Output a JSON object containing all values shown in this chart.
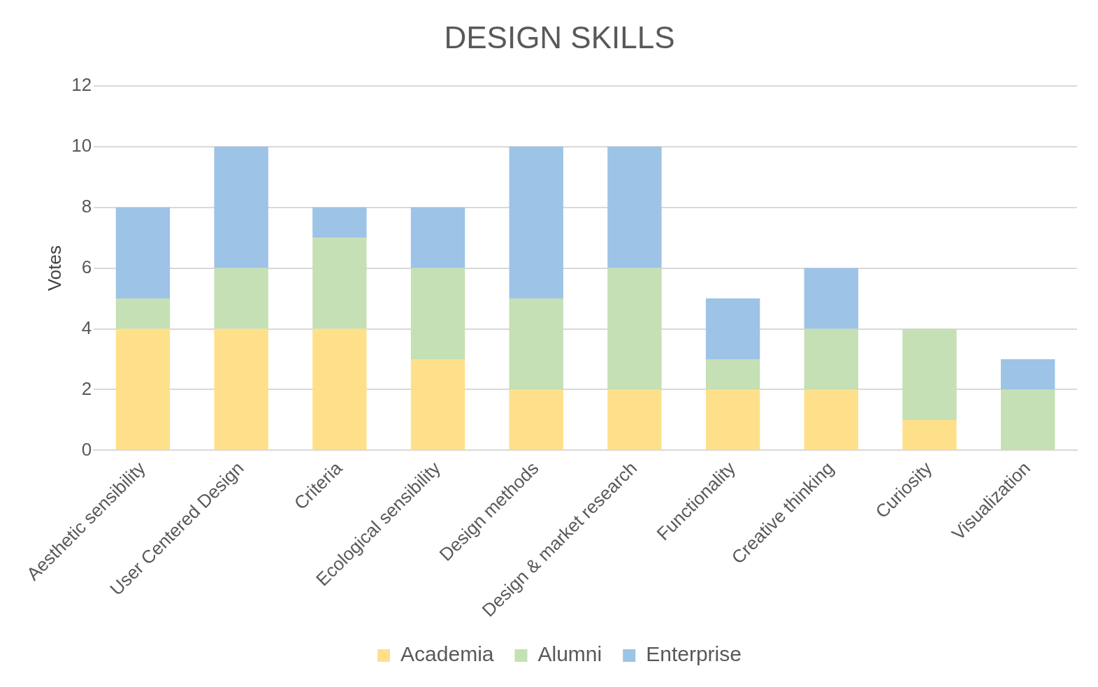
{
  "chart_data": {
    "type": "bar",
    "title": "DESIGN SKILLS",
    "ylabel": "Votes",
    "categories": [
      "Aesthetic sensibility",
      "User Centered Design",
      "Criteria",
      "Ecological sensibility",
      "Design methods",
      "Design & market research",
      "Functionality",
      "Creative thinking",
      "Curiosity",
      "Visualization"
    ],
    "series": [
      {
        "name": "Academia",
        "color": "#ffe08a",
        "values": [
          4,
          4,
          4,
          3,
          2,
          2,
          2,
          2,
          1,
          0
        ]
      },
      {
        "name": "Alumni",
        "color": "#c5e0b4",
        "values": [
          1,
          2,
          3,
          3,
          3,
          4,
          1,
          2,
          3,
          2
        ]
      },
      {
        "name": "Enterprise",
        "color": "#9dc3e6",
        "values": [
          3,
          4,
          1,
          2,
          5,
          4,
          2,
          2,
          0,
          1
        ]
      }
    ],
    "stacked": true,
    "ylim": [
      0,
      12
    ],
    "yticks": [
      0,
      2,
      4,
      6,
      8,
      10,
      12
    ],
    "grid": "y",
    "legend": "bottom"
  }
}
